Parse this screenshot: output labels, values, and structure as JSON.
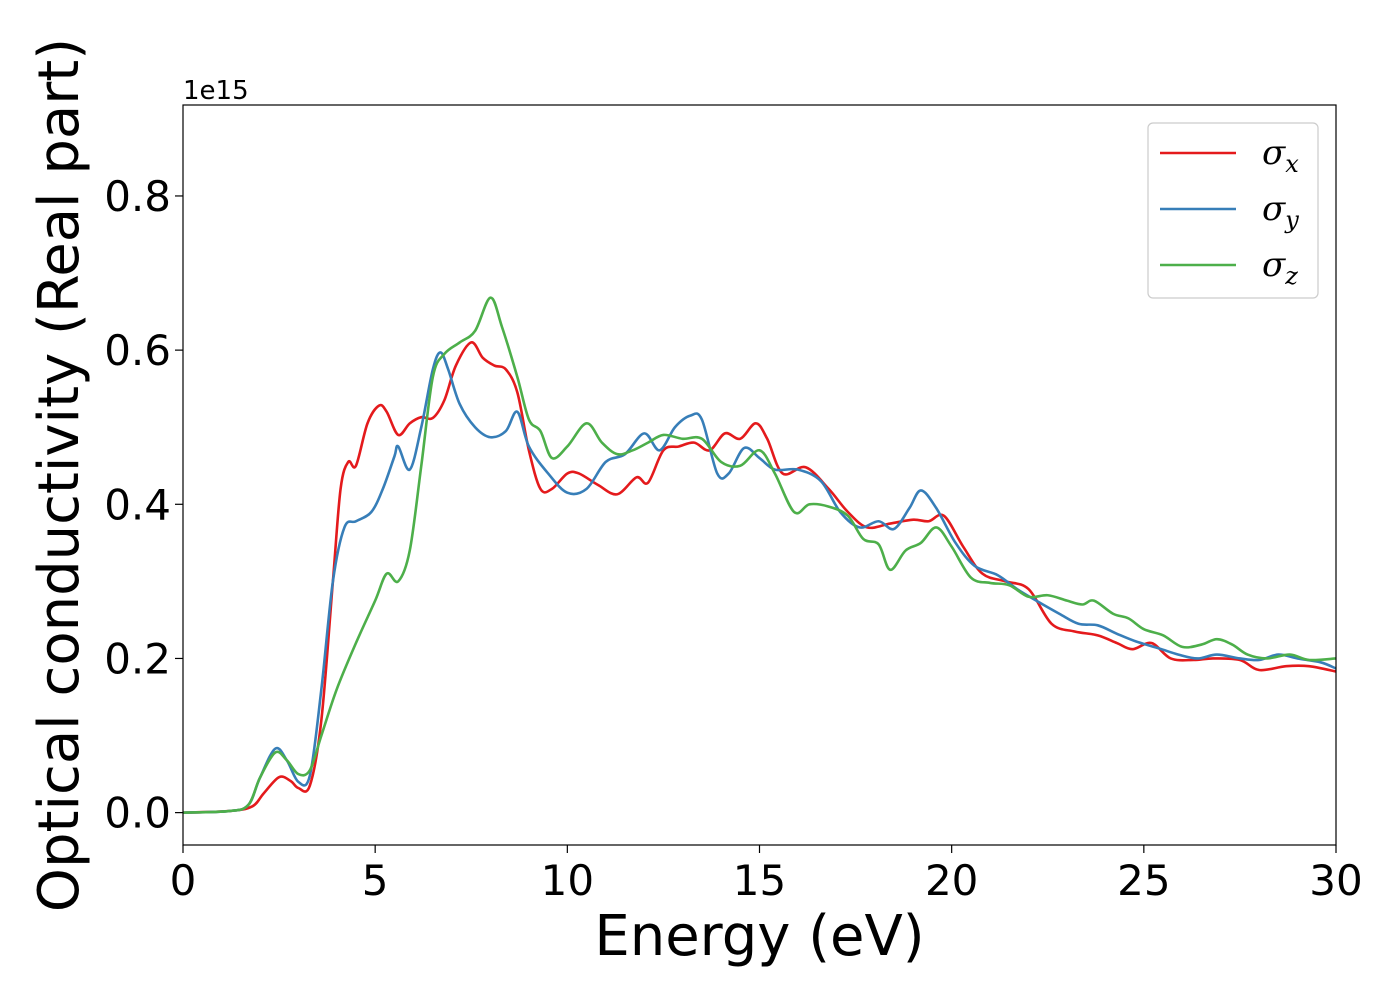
{
  "chart_data": {
    "type": "line",
    "xlabel": "Energy (eV)",
    "ylabel": "Optical conductivity (Real part)",
    "y_offset_label": "1e15",
    "xlim": [
      0,
      30
    ],
    "ylim": [
      -0.042,
      0.918
    ],
    "xticks": [
      0,
      5,
      10,
      15,
      20,
      25,
      30
    ],
    "xtick_labels": [
      "0",
      "5",
      "10",
      "15",
      "20",
      "25",
      "30"
    ],
    "yticks": [
      0.0,
      0.2,
      0.4,
      0.6,
      0.8
    ],
    "ytick_labels": [
      "0.0",
      "0.2",
      "0.4",
      "0.6",
      "0.8"
    ],
    "grid": false,
    "legend_position": "top-right",
    "series": [
      {
        "name": "σx",
        "symbol": "σ",
        "subscript": "x",
        "color": "#e41a1c",
        "points": [
          [
            0,
            0
          ],
          [
            1.2,
            0.002
          ],
          [
            1.8,
            0.008
          ],
          [
            2.1,
            0.025
          ],
          [
            2.5,
            0.046
          ],
          [
            2.8,
            0.041
          ],
          [
            3.0,
            0.032
          ],
          [
            3.3,
            0.035
          ],
          [
            3.6,
            0.12
          ],
          [
            3.9,
            0.3
          ],
          [
            4.1,
            0.42
          ],
          [
            4.3,
            0.455
          ],
          [
            4.5,
            0.45
          ],
          [
            4.8,
            0.505
          ],
          [
            5.1,
            0.528
          ],
          [
            5.3,
            0.52
          ],
          [
            5.6,
            0.49
          ],
          [
            5.9,
            0.505
          ],
          [
            6.2,
            0.513
          ],
          [
            6.5,
            0.512
          ],
          [
            6.8,
            0.535
          ],
          [
            7.1,
            0.58
          ],
          [
            7.5,
            0.61
          ],
          [
            7.8,
            0.59
          ],
          [
            8.1,
            0.58
          ],
          [
            8.4,
            0.575
          ],
          [
            8.7,
            0.545
          ],
          [
            9.0,
            0.47
          ],
          [
            9.3,
            0.42
          ],
          [
            9.6,
            0.42
          ],
          [
            10.0,
            0.44
          ],
          [
            10.3,
            0.44
          ],
          [
            10.8,
            0.425
          ],
          [
            11.3,
            0.413
          ],
          [
            11.8,
            0.435
          ],
          [
            12.1,
            0.428
          ],
          [
            12.5,
            0.47
          ],
          [
            12.9,
            0.475
          ],
          [
            13.3,
            0.48
          ],
          [
            13.7,
            0.47
          ],
          [
            14.1,
            0.492
          ],
          [
            14.5,
            0.485
          ],
          [
            14.9,
            0.505
          ],
          [
            15.2,
            0.485
          ],
          [
            15.6,
            0.44
          ],
          [
            16.2,
            0.448
          ],
          [
            16.8,
            0.42
          ],
          [
            17.3,
            0.39
          ],
          [
            17.8,
            0.37
          ],
          [
            18.4,
            0.375
          ],
          [
            19.0,
            0.38
          ],
          [
            19.4,
            0.378
          ],
          [
            19.8,
            0.385
          ],
          [
            20.3,
            0.345
          ],
          [
            20.8,
            0.31
          ],
          [
            21.4,
            0.3
          ],
          [
            22.0,
            0.29
          ],
          [
            22.6,
            0.245
          ],
          [
            23.2,
            0.235
          ],
          [
            23.8,
            0.23
          ],
          [
            24.3,
            0.22
          ],
          [
            24.7,
            0.212
          ],
          [
            25.2,
            0.22
          ],
          [
            25.7,
            0.2
          ],
          [
            26.3,
            0.198
          ],
          [
            26.8,
            0.2
          ],
          [
            27.5,
            0.198
          ],
          [
            28.0,
            0.185
          ],
          [
            28.7,
            0.19
          ],
          [
            29.3,
            0.19
          ],
          [
            30.0,
            0.183
          ]
        ]
      },
      {
        "name": "σy",
        "symbol": "σ",
        "subscript": "y",
        "color": "#377eb8",
        "points": [
          [
            0,
            0
          ],
          [
            1.2,
            0.002
          ],
          [
            1.7,
            0.01
          ],
          [
            2.0,
            0.045
          ],
          [
            2.4,
            0.083
          ],
          [
            2.7,
            0.068
          ],
          [
            3.0,
            0.04
          ],
          [
            3.3,
            0.048
          ],
          [
            3.6,
            0.16
          ],
          [
            3.9,
            0.3
          ],
          [
            4.2,
            0.37
          ],
          [
            4.5,
            0.378
          ],
          [
            4.9,
            0.39
          ],
          [
            5.2,
            0.42
          ],
          [
            5.5,
            0.462
          ],
          [
            5.6,
            0.475
          ],
          [
            5.9,
            0.445
          ],
          [
            6.2,
            0.5
          ],
          [
            6.5,
            0.575
          ],
          [
            6.7,
            0.597
          ],
          [
            6.9,
            0.575
          ],
          [
            7.2,
            0.53
          ],
          [
            7.6,
            0.5
          ],
          [
            8.0,
            0.487
          ],
          [
            8.4,
            0.495
          ],
          [
            8.7,
            0.52
          ],
          [
            9.0,
            0.475
          ],
          [
            9.5,
            0.44
          ],
          [
            10.0,
            0.415
          ],
          [
            10.5,
            0.42
          ],
          [
            11.0,
            0.455
          ],
          [
            11.5,
            0.465
          ],
          [
            12.0,
            0.492
          ],
          [
            12.4,
            0.47
          ],
          [
            12.8,
            0.5
          ],
          [
            13.2,
            0.515
          ],
          [
            13.5,
            0.51
          ],
          [
            13.9,
            0.44
          ],
          [
            14.2,
            0.44
          ],
          [
            14.6,
            0.473
          ],
          [
            15.0,
            0.46
          ],
          [
            15.4,
            0.445
          ],
          [
            16.0,
            0.445
          ],
          [
            16.6,
            0.43
          ],
          [
            17.1,
            0.39
          ],
          [
            17.6,
            0.37
          ],
          [
            18.1,
            0.378
          ],
          [
            18.5,
            0.368
          ],
          [
            18.9,
            0.395
          ],
          [
            19.2,
            0.418
          ],
          [
            19.6,
            0.395
          ],
          [
            20.1,
            0.35
          ],
          [
            20.6,
            0.32
          ],
          [
            21.2,
            0.308
          ],
          [
            21.7,
            0.29
          ],
          [
            22.2,
            0.275
          ],
          [
            22.8,
            0.258
          ],
          [
            23.3,
            0.245
          ],
          [
            23.8,
            0.243
          ],
          [
            24.3,
            0.232
          ],
          [
            24.8,
            0.222
          ],
          [
            25.4,
            0.213
          ],
          [
            25.9,
            0.205
          ],
          [
            26.4,
            0.2
          ],
          [
            26.9,
            0.205
          ],
          [
            27.5,
            0.2
          ],
          [
            28.0,
            0.198
          ],
          [
            28.5,
            0.205
          ],
          [
            29.0,
            0.2
          ],
          [
            29.6,
            0.195
          ],
          [
            30.0,
            0.187
          ]
        ]
      },
      {
        "name": "σz",
        "symbol": "σ",
        "subscript": "z",
        "color": "#4daf4a",
        "points": [
          [
            0,
            0
          ],
          [
            1.2,
            0.002
          ],
          [
            1.7,
            0.01
          ],
          [
            2.0,
            0.045
          ],
          [
            2.4,
            0.078
          ],
          [
            2.7,
            0.068
          ],
          [
            3.0,
            0.05
          ],
          [
            3.3,
            0.055
          ],
          [
            3.6,
            0.1
          ],
          [
            4.0,
            0.16
          ],
          [
            4.5,
            0.22
          ],
          [
            5.0,
            0.275
          ],
          [
            5.3,
            0.31
          ],
          [
            5.6,
            0.3
          ],
          [
            5.9,
            0.34
          ],
          [
            6.2,
            0.45
          ],
          [
            6.5,
            0.565
          ],
          [
            6.8,
            0.595
          ],
          [
            7.2,
            0.61
          ],
          [
            7.6,
            0.625
          ],
          [
            8.0,
            0.668
          ],
          [
            8.3,
            0.63
          ],
          [
            8.7,
            0.565
          ],
          [
            9.0,
            0.51
          ],
          [
            9.3,
            0.495
          ],
          [
            9.6,
            0.46
          ],
          [
            10.0,
            0.475
          ],
          [
            10.5,
            0.505
          ],
          [
            10.9,
            0.48
          ],
          [
            11.3,
            0.465
          ],
          [
            11.7,
            0.47
          ],
          [
            12.1,
            0.48
          ],
          [
            12.5,
            0.49
          ],
          [
            13.0,
            0.485
          ],
          [
            13.5,
            0.485
          ],
          [
            14.0,
            0.455
          ],
          [
            14.5,
            0.45
          ],
          [
            15.0,
            0.47
          ],
          [
            15.4,
            0.44
          ],
          [
            15.9,
            0.39
          ],
          [
            16.3,
            0.4
          ],
          [
            16.8,
            0.397
          ],
          [
            17.3,
            0.385
          ],
          [
            17.7,
            0.355
          ],
          [
            18.1,
            0.348
          ],
          [
            18.4,
            0.315
          ],
          [
            18.8,
            0.34
          ],
          [
            19.2,
            0.35
          ],
          [
            19.6,
            0.37
          ],
          [
            20.0,
            0.345
          ],
          [
            20.5,
            0.305
          ],
          [
            21.0,
            0.298
          ],
          [
            21.5,
            0.295
          ],
          [
            22.0,
            0.28
          ],
          [
            22.5,
            0.282
          ],
          [
            23.0,
            0.275
          ],
          [
            23.4,
            0.27
          ],
          [
            23.7,
            0.275
          ],
          [
            24.2,
            0.258
          ],
          [
            24.6,
            0.252
          ],
          [
            25.0,
            0.238
          ],
          [
            25.5,
            0.23
          ],
          [
            26.0,
            0.215
          ],
          [
            26.5,
            0.218
          ],
          [
            26.9,
            0.225
          ],
          [
            27.3,
            0.218
          ],
          [
            27.7,
            0.205
          ],
          [
            28.2,
            0.2
          ],
          [
            28.8,
            0.205
          ],
          [
            29.3,
            0.198
          ],
          [
            30.0,
            0.2
          ]
        ]
      }
    ]
  }
}
